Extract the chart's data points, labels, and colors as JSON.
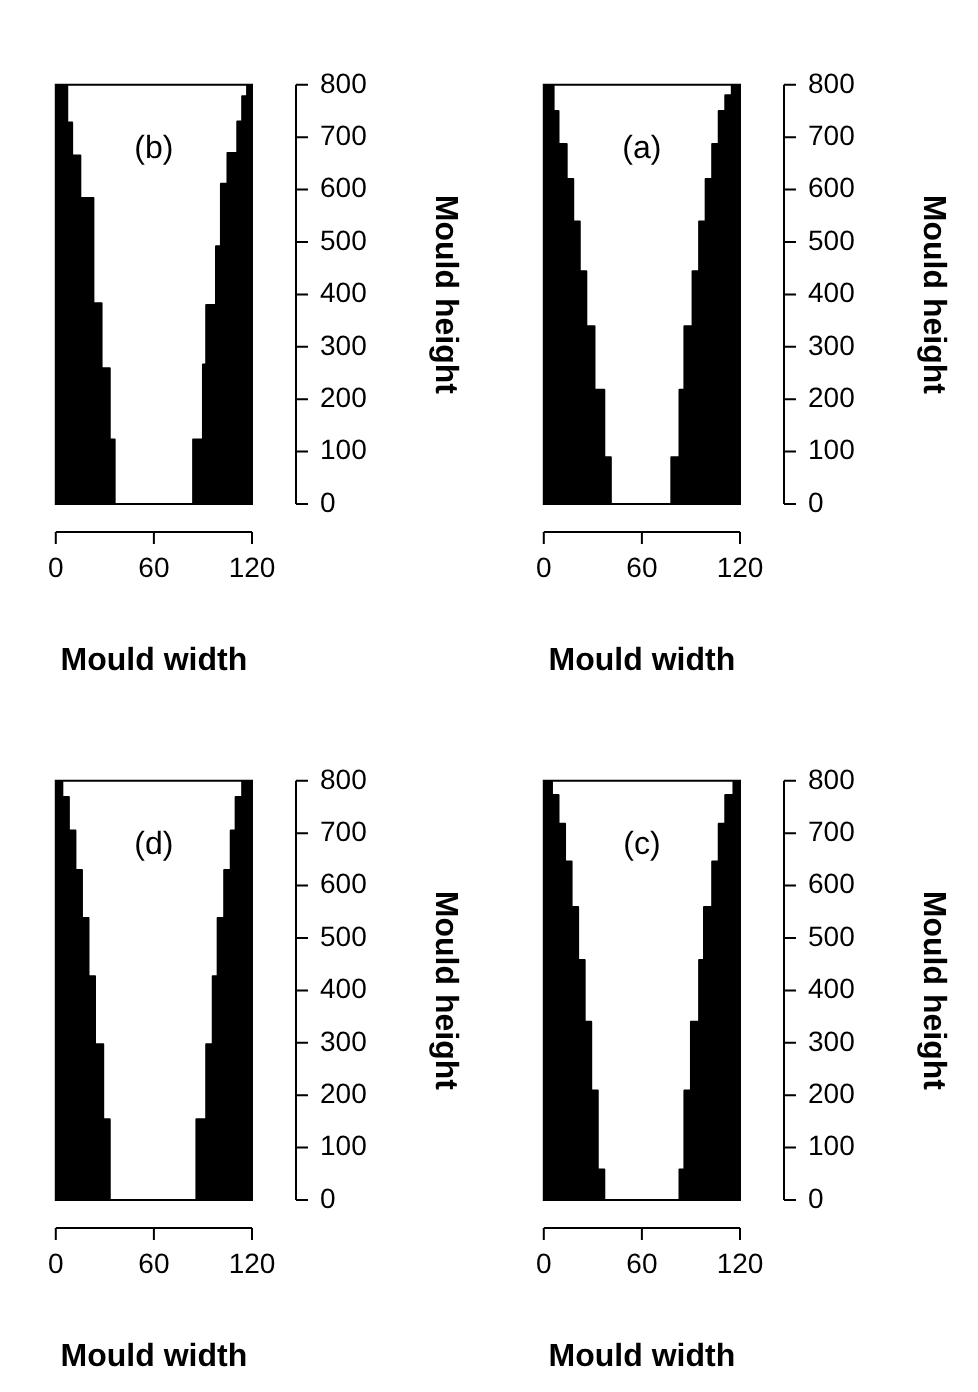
{
  "chart_data": [
    {
      "type": "area",
      "annotations": [
        "(b)"
      ],
      "xlabel": "Mould width",
      "ylabel": "Mould height",
      "xlim": [
        0,
        120
      ],
      "ylim": [
        0,
        800
      ],
      "xticks": [
        0,
        60,
        120
      ],
      "yticks": [
        0,
        100,
        200,
        300,
        400,
        500,
        600,
        700,
        800
      ],
      "series": [
        {
          "color": "#000000",
          "x": [
            0,
            36,
            36,
            33,
            33,
            28,
            28,
            23,
            23,
            15,
            15,
            10,
            10,
            7,
            7,
            0
          ],
          "values": [
            0,
            0,
            123,
            123,
            259,
            259,
            383,
            383,
            584,
            584,
            665,
            665,
            728,
            728,
            800,
            800
          ]
        },
        {
          "color": "#000000",
          "x": [
            120,
            84,
            84,
            90,
            90,
            92,
            92,
            98,
            98,
            101,
            101,
            105,
            105,
            111,
            111,
            114,
            114,
            117,
            117,
            120
          ],
          "values": [
            0,
            0,
            123,
            123,
            266,
            266,
            380,
            380,
            492,
            492,
            611,
            611,
            670,
            670,
            730,
            730,
            778,
            778,
            800,
            800
          ]
        }
      ]
    },
    {
      "type": "area",
      "annotations": [
        "(a)"
      ],
      "xlabel": "Mould width",
      "ylabel": "Mould height",
      "xlim": [
        0,
        120
      ],
      "ylim": [
        0,
        800
      ],
      "xticks": [
        0,
        60,
        120
      ],
      "yticks": [
        0,
        100,
        200,
        300,
        400,
        500,
        600,
        700,
        800
      ],
      "series": [
        {
          "color": "#000000",
          "x": [
            0,
            41,
            41,
            37,
            37,
            31,
            31,
            26,
            26,
            22,
            22,
            18,
            18,
            14,
            14,
            9,
            9,
            6,
            6,
            0
          ],
          "values": [
            0,
            0,
            89,
            89,
            218,
            218,
            339,
            339,
            444,
            444,
            539,
            539,
            620,
            620,
            687,
            687,
            750,
            750,
            800,
            800
          ]
        },
        {
          "color": "#000000",
          "x": [
            120,
            78,
            78,
            83,
            83,
            86,
            86,
            91,
            91,
            95,
            95,
            99,
            99,
            103,
            103,
            107,
            107,
            111,
            111,
            115,
            115,
            120
          ],
          "values": [
            0,
            0,
            89,
            89,
            218,
            218,
            339,
            339,
            444,
            444,
            539,
            539,
            620,
            620,
            687,
            687,
            750,
            750,
            780,
            780,
            800,
            800
          ]
        }
      ]
    },
    {
      "type": "area",
      "annotations": [
        "(d)"
      ],
      "xlabel": "Mould width",
      "ylabel": "Mould height",
      "xlim": [
        0,
        120
      ],
      "ylim": [
        0,
        800
      ],
      "xticks": [
        0,
        60,
        120
      ],
      "yticks": [
        0,
        100,
        200,
        300,
        400,
        500,
        600,
        700,
        800
      ],
      "series": [
        {
          "color": "#000000",
          "x": [
            0,
            33,
            33,
            29,
            29,
            24,
            24,
            20,
            20,
            16,
            16,
            12,
            12,
            8,
            8,
            4,
            4,
            0
          ],
          "values": [
            0,
            0,
            154,
            154,
            297,
            297,
            427,
            427,
            538,
            538,
            630,
            630,
            705,
            705,
            769,
            769,
            800,
            800
          ]
        },
        {
          "color": "#000000",
          "x": [
            120,
            86,
            86,
            92,
            92,
            96,
            96,
            99,
            99,
            103,
            103,
            107,
            107,
            110,
            110,
            114,
            114,
            120
          ],
          "values": [
            0,
            0,
            154,
            154,
            297,
            297,
            427,
            427,
            538,
            538,
            630,
            630,
            705,
            705,
            769,
            769,
            800,
            800
          ]
        }
      ]
    },
    {
      "type": "area",
      "annotations": [
        "(c)"
      ],
      "xlabel": "Mould width",
      "ylabel": "Mould height",
      "xlim": [
        0,
        120
      ],
      "ylim": [
        0,
        800
      ],
      "xticks": [
        0,
        60,
        120
      ],
      "yticks": [
        0,
        100,
        200,
        300,
        400,
        500,
        600,
        700,
        800
      ],
      "series": [
        {
          "color": "#000000",
          "x": [
            0,
            37,
            37,
            33,
            33,
            29,
            29,
            25,
            25,
            21,
            21,
            17,
            17,
            13,
            13,
            9,
            9,
            5,
            5,
            0
          ],
          "values": [
            0,
            0,
            58,
            58,
            209,
            209,
            340,
            340,
            458,
            458,
            559,
            559,
            646,
            646,
            718,
            718,
            773,
            773,
            800,
            800
          ]
        },
        {
          "color": "#000000",
          "x": [
            120,
            83,
            83,
            86,
            86,
            90,
            90,
            95,
            95,
            98,
            98,
            103,
            103,
            107,
            107,
            111,
            111,
            116,
            116,
            120
          ],
          "values": [
            0,
            0,
            58,
            58,
            209,
            209,
            340,
            340,
            458,
            458,
            559,
            559,
            646,
            646,
            718,
            718,
            773,
            773,
            800,
            800
          ]
        }
      ]
    }
  ]
}
